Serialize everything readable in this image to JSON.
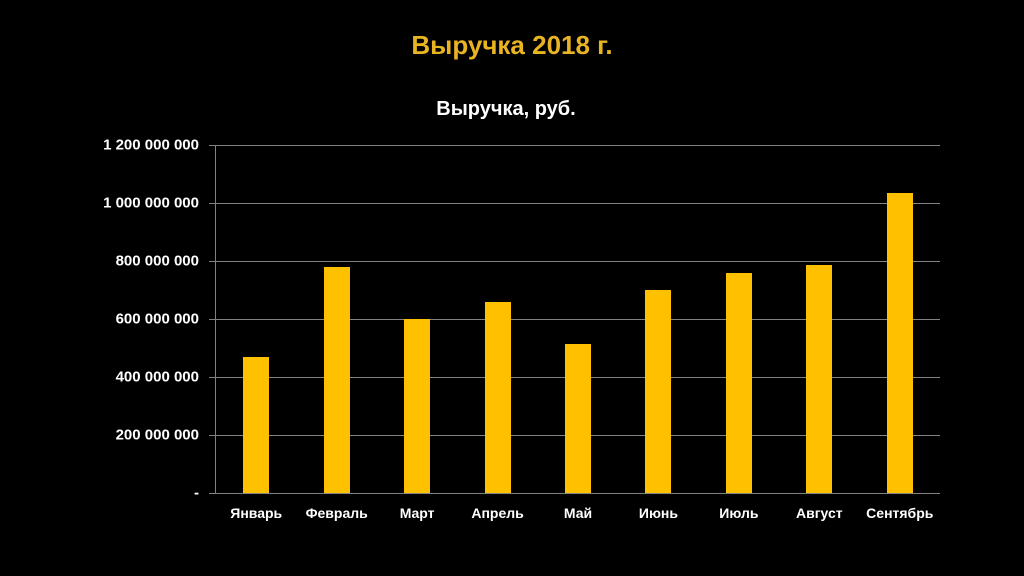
{
  "slide": {
    "title": "Выручка 2018 г."
  },
  "colors": {
    "background": "#000000",
    "bar": "#ffc000",
    "title": "#e8b421",
    "grid": "#828282",
    "text": "#ffffff"
  },
  "chart_data": {
    "type": "bar",
    "title": "Выручка, руб.",
    "categories": [
      "Январь",
      "Февраль",
      "Март",
      "Апрель",
      "Май",
      "Июнь",
      "Июль",
      "Август",
      "Сентябрь"
    ],
    "values": [
      470000000,
      780000000,
      600000000,
      660000000,
      515000000,
      700000000,
      760000000,
      785000000,
      1035000000
    ],
    "xlabel": "",
    "ylabel": "",
    "ylim": [
      0,
      1200000000
    ],
    "tick_labels": [
      "1 200 000 000",
      "1 000 000 000",
      "800 000 000",
      "600 000 000",
      "400 000 000",
      "200 000 000",
      "-"
    ],
    "grid": true,
    "legend": "none"
  }
}
